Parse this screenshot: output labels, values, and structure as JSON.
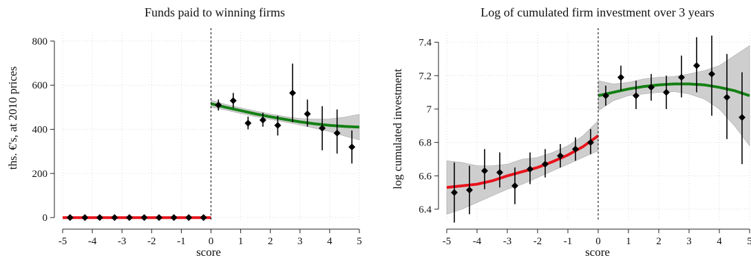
{
  "colors": {
    "left_fit": "#e8131b",
    "right_fit": "#138013",
    "band": "#bdbdbd",
    "markers": "#000000"
  },
  "chart_data": [
    {
      "type": "scatter",
      "title": "Funds paid to winning firms",
      "xlabel": "score",
      "ylabel": "ths. €'s, at 2010 prices",
      "xlim": [
        -5,
        5
      ],
      "ylim": [
        -15,
        840
      ],
      "xticks": [
        -5,
        -4,
        -3,
        -2,
        -1,
        0,
        1,
        2,
        3,
        4,
        5
      ],
      "yticks": [
        0,
        200,
        400,
        600,
        800
      ],
      "xtick_labels": [
        "-5",
        "-4",
        "-3",
        "-2",
        "-1",
        "0",
        "1",
        "2",
        "3",
        "4",
        "5"
      ],
      "ytick_labels": [
        "0",
        "200",
        "400",
        "600",
        "800"
      ],
      "cutoff": 0,
      "grid": true,
      "points": {
        "x": [
          -4.75,
          -4.25,
          -3.75,
          -3.25,
          -2.75,
          -2.25,
          -1.75,
          -1.25,
          -0.75,
          -0.25,
          0.25,
          0.75,
          1.25,
          1.75,
          2.25,
          2.75,
          3.25,
          3.75,
          4.25,
          4.75
        ],
        "y": [
          0,
          0,
          0,
          0,
          0,
          0,
          0,
          0,
          0,
          0,
          510,
          530,
          428,
          442,
          418,
          565,
          470,
          405,
          383,
          320
        ],
        "lo": [
          0,
          0,
          0,
          0,
          0,
          0,
          0,
          0,
          0,
          0,
          485,
          497,
          400,
          412,
          372,
          432,
          412,
          305,
          290,
          245
        ],
        "hi": [
          0,
          0,
          0,
          0,
          0,
          0,
          0,
          0,
          0,
          0,
          535,
          565,
          458,
          475,
          462,
          698,
          535,
          505,
          490,
          395
        ]
      },
      "fit_left": {
        "x": [
          -5,
          0
        ],
        "y": [
          0,
          0
        ]
      },
      "fit_right": {
        "x": [
          0,
          0.5,
          1,
          1.5,
          2,
          2.5,
          3,
          3.5,
          4,
          4.5,
          5
        ],
        "y": [
          516,
          500,
          485,
          470,
          457,
          445,
          434,
          425,
          418,
          413,
          410
        ],
        "lo": [
          500,
          487,
          472,
          458,
          445,
          433,
          420,
          405,
          390,
          370,
          352
        ],
        "hi": [
          532,
          513,
          498,
          483,
          470,
          458,
          449,
          446,
          447,
          455,
          468
        ]
      }
    },
    {
      "type": "scatter",
      "title": "Log of  cumulated firm investment over 3 years",
      "xlabel": "score",
      "ylabel": "log cumulated investment",
      "xlim": [
        -5,
        5
      ],
      "ylim": [
        6.33,
        7.46
      ],
      "xticks": [
        -5,
        -4,
        -3,
        -2,
        -1,
        0,
        1,
        2,
        3,
        4,
        5
      ],
      "yticks": [
        6.4,
        6.6,
        6.8,
        7,
        7.2,
        7.4
      ],
      "xtick_labels": [
        "-5",
        "-4",
        "-3",
        "-2",
        "-1",
        "0",
        "1",
        "2",
        "3",
        "4",
        "5"
      ],
      "ytick_labels": [
        "6.4",
        "6.6",
        "6.8",
        "7",
        "7.2",
        "7.4"
      ],
      "cutoff": 0,
      "grid": true,
      "points": {
        "x": [
          -4.75,
          -4.25,
          -3.75,
          -3.25,
          -2.75,
          -2.25,
          -1.75,
          -1.25,
          -0.75,
          -0.25,
          0.25,
          0.75,
          1.25,
          1.75,
          2.25,
          2.75,
          3.25,
          3.75,
          4.25,
          4.75
        ],
        "y": [
          6.5,
          6.515,
          6.63,
          6.62,
          6.54,
          6.64,
          6.67,
          6.72,
          6.76,
          6.8,
          7.08,
          7.19,
          7.08,
          7.13,
          7.1,
          7.19,
          7.26,
          7.21,
          7.07,
          6.95
        ],
        "lo": [
          6.32,
          6.37,
          6.52,
          6.53,
          6.43,
          6.55,
          6.59,
          6.65,
          6.69,
          6.73,
          7.02,
          7.11,
          7.0,
          7.05,
          7.0,
          7.07,
          7.1,
          6.96,
          6.82,
          6.67
        ],
        "hi": [
          6.68,
          6.66,
          6.76,
          6.74,
          6.65,
          6.74,
          6.76,
          6.79,
          6.83,
          6.88,
          7.14,
          7.26,
          7.17,
          7.21,
          7.2,
          7.32,
          7.43,
          7.44,
          7.33,
          7.22
        ]
      },
      "fit_left": {
        "x": [
          -5,
          -4.5,
          -4,
          -3.5,
          -3,
          -2.5,
          -2,
          -1.5,
          -1,
          -0.5,
          0
        ],
        "y": [
          6.53,
          6.54,
          6.55,
          6.57,
          6.6,
          6.625,
          6.65,
          6.685,
          6.725,
          6.775,
          6.84
        ],
        "lo": [
          6.37,
          6.4,
          6.44,
          6.48,
          6.52,
          6.55,
          6.59,
          6.63,
          6.67,
          6.71,
          6.75
        ],
        "hi": [
          6.69,
          6.68,
          6.66,
          6.66,
          6.67,
          6.7,
          6.71,
          6.74,
          6.78,
          6.84,
          6.93
        ]
      },
      "fit_right": {
        "x": [
          0,
          0.5,
          1,
          1.5,
          2,
          2.5,
          3,
          3.5,
          4,
          4.5,
          5
        ],
        "y": [
          7.08,
          7.1,
          7.12,
          7.135,
          7.145,
          7.15,
          7.15,
          7.145,
          7.13,
          7.11,
          7.08
        ],
        "lo": [
          6.99,
          7.05,
          7.08,
          7.09,
          7.1,
          7.105,
          7.09,
          7.06,
          7.0,
          6.9,
          6.78
        ],
        "hi": [
          7.17,
          7.15,
          7.16,
          7.18,
          7.19,
          7.195,
          7.21,
          7.23,
          7.26,
          7.32,
          7.38
        ]
      }
    }
  ]
}
